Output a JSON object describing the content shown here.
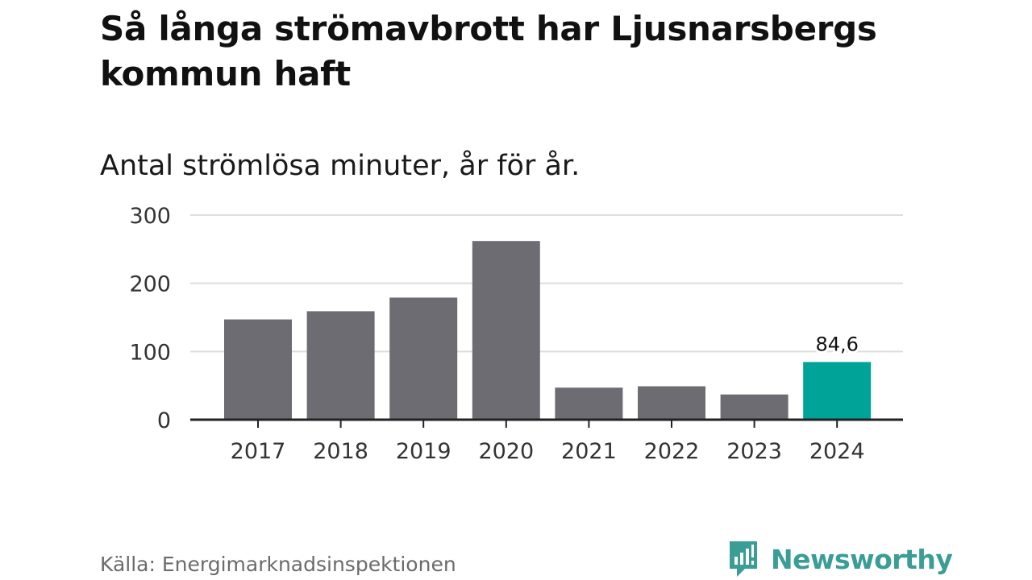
{
  "title": "Så långa strömavbrott har Ljusnarsbergs kommun haft",
  "subtitle": "Antal strömlösa minuter, år för år.",
  "source": "Källa: Energimarknadsinspektionen",
  "brand": {
    "name": "Newsworthy",
    "icon": "newsworthy-logo-icon",
    "color": "#3a9d96"
  },
  "colors": {
    "bar": "#6d6c72",
    "highlight": "#00a398",
    "grid": "#dddddd",
    "axis": "#222222"
  },
  "chart_data": {
    "type": "bar",
    "title": "Så långa strömavbrott har Ljusnarsbergs kommun haft",
    "subtitle": "Antal strömlösa minuter, år för år.",
    "xlabel": "",
    "ylabel": "",
    "categories": [
      "2017",
      "2018",
      "2019",
      "2020",
      "2021",
      "2022",
      "2023",
      "2024"
    ],
    "values": [
      147,
      159,
      179,
      262,
      47,
      49,
      37,
      84.6
    ],
    "highlight_index": 7,
    "data_labels": [
      "",
      "",
      "",
      "",
      "",
      "",
      "",
      "84,6"
    ],
    "ylim": [
      0,
      300
    ],
    "yticks": [
      0,
      100,
      200,
      300
    ],
    "ytick_labels": [
      "0",
      "100",
      "200",
      "300"
    ],
    "grid": true
  }
}
